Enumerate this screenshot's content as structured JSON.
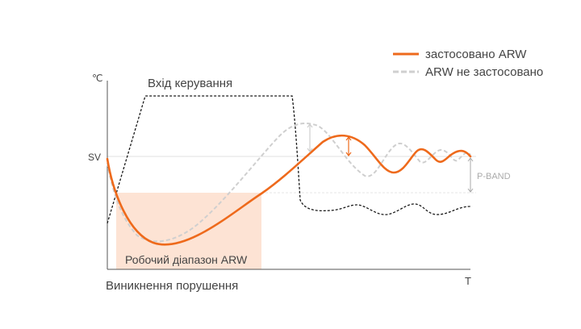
{
  "legend": {
    "applied": "застосовано ARW",
    "not_applied": "ARW не застосовано"
  },
  "axes": {
    "y_unit": "℃",
    "x_unit": "T",
    "sv_label": "SV"
  },
  "labels": {
    "control_input": "Вхід керування",
    "arw_range": "Робочий діапазон ARW",
    "disturbance": "Виникнення порушення",
    "p_band": "P-BAND"
  },
  "colors": {
    "applied": "#ee6a1c",
    "not_applied": "#cfcfcf",
    "control": "#1a1a1a",
    "range_fill": "#fde3d4",
    "axis": "#555555",
    "text": "#444444",
    "pband": "#aaaaaa"
  }
}
